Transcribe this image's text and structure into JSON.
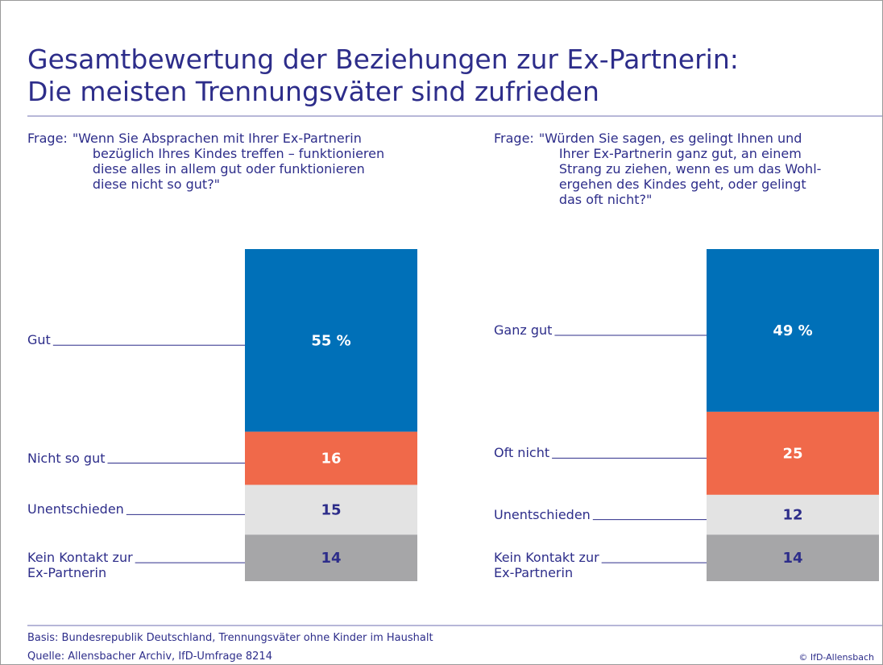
{
  "title": [
    "Gesamtbewertung der Beziehungen zur Ex-Partnerin:",
    "Die meisten Trennungsväter sind zufrieden"
  ],
  "chart_data": [
    {
      "type": "stacked_bar",
      "question_label": "Frage:",
      "question_lines": [
        "\"Wenn Sie Absprachen mit Ihrer Ex-Partnerin",
        "bezüglich Ihres Kindes treffen – funktionieren",
        "diese alles in allem gut oder funktionieren",
        "diese nicht so gut?\""
      ],
      "categories": [
        "Gut",
        "Nicht so gut",
        "Unentschieden",
        "Kein Kontakt zur\nEx-Partnerin"
      ],
      "values": [
        55,
        16,
        15,
        14
      ],
      "value_labels": [
        "55 %",
        "16",
        "15",
        "14"
      ],
      "colors": [
        "#0070b8",
        "#f0694a",
        "#e3e3e3",
        "#a6a6a8"
      ],
      "ylim": [
        0,
        100
      ]
    },
    {
      "type": "stacked_bar",
      "question_label": "Frage:",
      "question_lines": [
        "\"Würden Sie sagen, es gelingt Ihnen und",
        "Ihrer Ex-Partnerin ganz gut, an einem",
        "Strang zu ziehen, wenn es um das Wohl-",
        "ergehen des Kindes geht, oder gelingt",
        "das oft nicht?\""
      ],
      "categories": [
        "Ganz gut",
        "Oft nicht",
        "Unentschieden",
        "Kein Kontakt zur\nEx-Partnerin"
      ],
      "values": [
        49,
        25,
        12,
        14
      ],
      "value_labels": [
        "49 %",
        "25",
        "12",
        "14"
      ],
      "colors": [
        "#0070b8",
        "#f0694a",
        "#e3e3e3",
        "#a6a6a8"
      ],
      "ylim": [
        0,
        100
      ]
    }
  ],
  "basis": "Basis: Bundesrepublik Deutschland, Trennungsväter ohne Kinder im Haushalt",
  "source": "Quelle: Allensbacher Archiv, IfD-Umfrage 8214",
  "copyright": "© IfD-Allensbach"
}
